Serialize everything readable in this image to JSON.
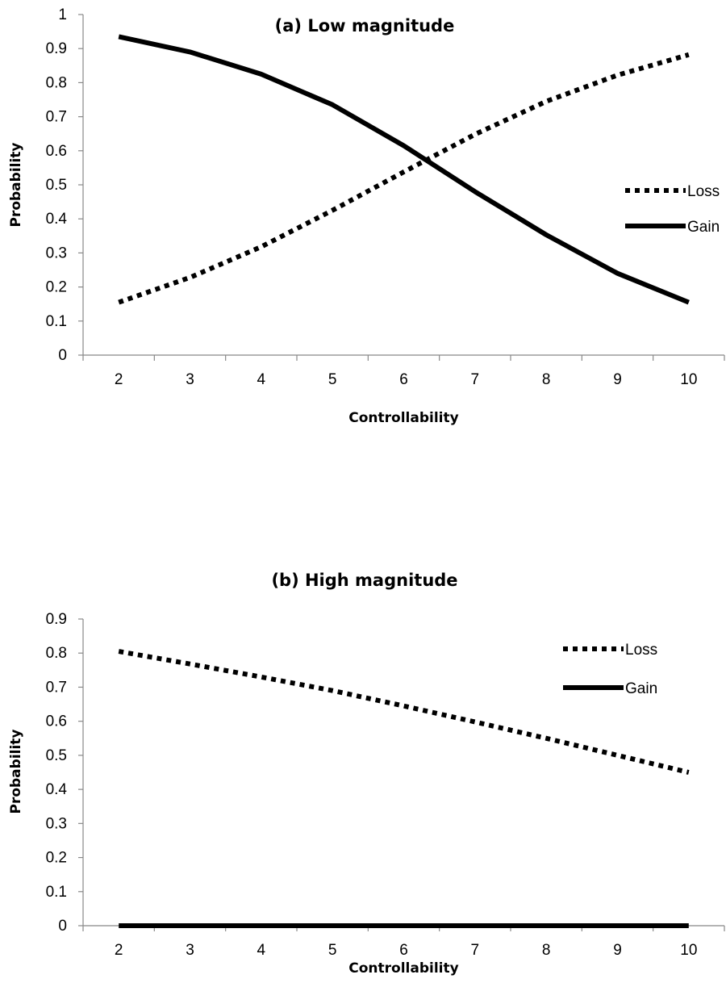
{
  "chart_data": [
    {
      "type": "line",
      "title": "(a) Low magnitude",
      "xlabel": "Controllability",
      "ylabel": "Probability",
      "x": [
        2,
        3,
        4,
        5,
        6,
        7,
        8,
        9,
        10
      ],
      "x_tick_labels": [
        "2",
        "3",
        "4",
        "5",
        "6",
        "7",
        "8",
        "9",
        "10"
      ],
      "ylim": [
        0,
        1
      ],
      "y_tick_labels": [
        "0",
        "0.1",
        "0.2",
        "0.3",
        "0.4",
        "0.5",
        "0.6",
        "0.7",
        "0.8",
        "0.9",
        "1"
      ],
      "grid": false,
      "legend_position": "right",
      "series": [
        {
          "name": "Loss",
          "style": "dotted",
          "color": "#000000",
          "values": [
            0.155,
            0.228,
            0.318,
            0.425,
            0.538,
            0.648,
            0.745,
            0.822,
            0.882
          ]
        },
        {
          "name": "Gain",
          "style": "solid",
          "color": "#000000",
          "values": [
            0.935,
            0.89,
            0.825,
            0.735,
            0.615,
            0.48,
            0.353,
            0.24,
            0.155
          ]
        }
      ]
    },
    {
      "type": "line",
      "title": "(b) High magnitude",
      "xlabel": "Controllability",
      "ylabel": "Probability",
      "x": [
        2,
        3,
        4,
        5,
        6,
        7,
        8,
        9,
        10
      ],
      "x_tick_labels": [
        "2",
        "3",
        "4",
        "5",
        "6",
        "7",
        "8",
        "9",
        "10"
      ],
      "ylim": [
        0,
        0.9
      ],
      "y_tick_labels": [
        "0",
        "0.1",
        "0.2",
        "0.3",
        "0.4",
        "0.5",
        "0.6",
        "0.7",
        "0.8",
        "0.9"
      ],
      "grid": false,
      "legend_position": "right",
      "series": [
        {
          "name": "Loss",
          "style": "dotted",
          "color": "#000000",
          "values": [
            0.805,
            0.768,
            0.73,
            0.69,
            0.645,
            0.598,
            0.55,
            0.5,
            0.45
          ]
        },
        {
          "name": "Gain",
          "style": "solid",
          "color": "#000000",
          "values": [
            0,
            0,
            0,
            0,
            0,
            0,
            0,
            0,
            0
          ]
        }
      ]
    }
  ]
}
